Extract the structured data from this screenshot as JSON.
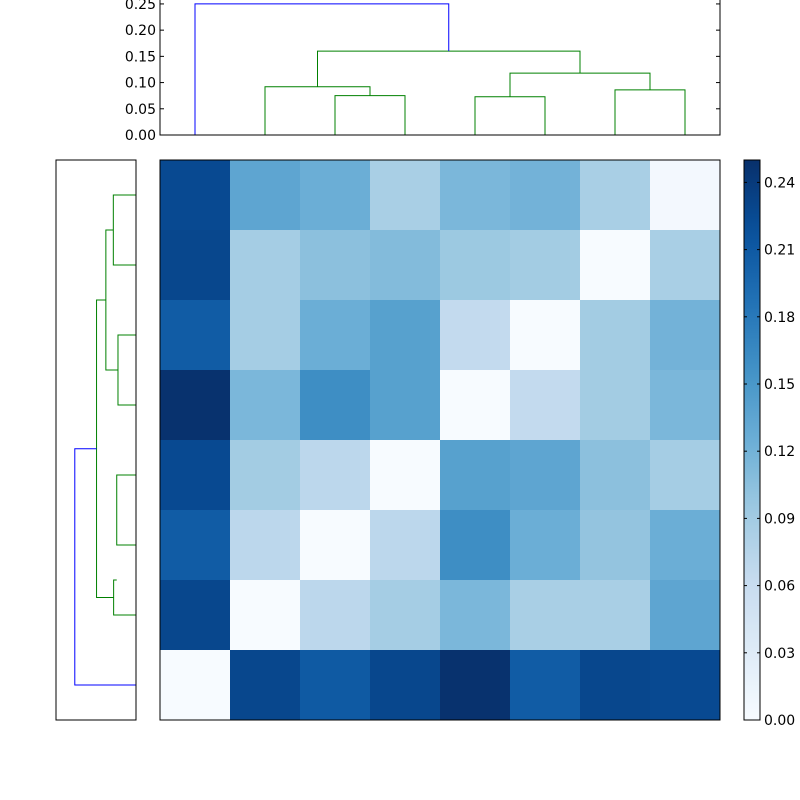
{
  "chart_data": {
    "type": "heatmap",
    "title": "",
    "heatmap": {
      "n": 8,
      "values": [
        [
          0.226,
          0.135,
          0.125,
          0.085,
          0.115,
          0.12,
          0.085,
          0.005
        ],
        [
          0.228,
          0.088,
          0.105,
          0.11,
          0.095,
          0.09,
          0.0,
          0.085
        ],
        [
          0.208,
          0.088,
          0.125,
          0.14,
          0.065,
          0.0,
          0.09,
          0.12
        ],
        [
          0.248,
          0.115,
          0.16,
          0.14,
          0.0,
          0.065,
          0.09,
          0.115
        ],
        [
          0.226,
          0.09,
          0.07,
          0.0,
          0.14,
          0.135,
          0.105,
          0.088
        ],
        [
          0.208,
          0.07,
          0.0,
          0.07,
          0.16,
          0.125,
          0.1,
          0.125
        ],
        [
          0.228,
          0.0,
          0.07,
          0.088,
          0.115,
          0.085,
          0.085,
          0.135
        ],
        [
          0.0,
          0.228,
          0.21,
          0.228,
          0.248,
          0.208,
          0.228,
          0.226
        ]
      ],
      "vmin": 0.0,
      "vmax": 0.25,
      "colormap": "Blues"
    },
    "colorbar": {
      "ticks": [
        "0.00",
        "0.03",
        "0.06",
        "0.09",
        "0.12",
        "0.15",
        "0.18",
        "0.21",
        "0.24"
      ],
      "tick_values": [
        0.0,
        0.03,
        0.06,
        0.09,
        0.12,
        0.15,
        0.18,
        0.21,
        0.24
      ]
    },
    "top_dendrogram": {
      "y_ticks": [
        "0.00",
        "0.05",
        "0.10",
        "0.15",
        "0.20",
        "0.25"
      ],
      "y_tick_values": [
        0.0,
        0.05,
        0.1,
        0.15,
        0.2,
        0.25
      ],
      "ylim": [
        0.0,
        0.2575
      ],
      "links": [
        {
          "a": 3,
          "b": 4,
          "ha": 0,
          "hb": 0,
          "h": 0.075,
          "color": "#008000"
        },
        {
          "a": 2,
          "b": 3.5,
          "ha": 0,
          "hb": 0.075,
          "h": 0.092,
          "color": "#008000"
        },
        {
          "a": 5,
          "b": 6,
          "ha": 0,
          "hb": 0,
          "h": 0.073,
          "color": "#008000"
        },
        {
          "a": 7,
          "b": 8,
          "ha": 0,
          "hb": 0,
          "h": 0.086,
          "color": "#008000"
        },
        {
          "a": 5.5,
          "b": 7.5,
          "ha": 0.073,
          "hb": 0.086,
          "h": 0.118,
          "color": "#008000"
        },
        {
          "a": 2.75,
          "b": 6.5,
          "ha": 0.092,
          "hb": 0.118,
          "h": 0.16,
          "color": "#008000"
        },
        {
          "a": 1,
          "b": 4.625,
          "ha": 0,
          "hb": 0.16,
          "h": 0.25,
          "color": "#0000ff"
        }
      ]
    },
    "left_dendrogram": {
      "xlim": [
        0.2575,
        0.0
      ],
      "links": [
        {
          "a": 1,
          "b": 2,
          "ha": 0,
          "hb": 0,
          "h": 0.073,
          "color": "#008000"
        },
        {
          "a": 3,
          "b": 4,
          "ha": 0,
          "hb": 0,
          "h": 0.058,
          "color": "#008000"
        },
        {
          "a": 1.5,
          "b": 3.5,
          "ha": 0.073,
          "hb": 0.058,
          "h": 0.097,
          "color": "#008000"
        },
        {
          "a": 5,
          "b": 6,
          "ha": 0,
          "hb": 0,
          "h": 0.062,
          "color": "#008000"
        },
        {
          "a": 6.5,
          "b": 7,
          "ha": 0.062,
          "hb": 0,
          "h": 0.072,
          "color": "#008000"
        },
        {
          "a": 2.5,
          "b": 6.75,
          "ha": 0.097,
          "hb": 0.072,
          "h": 0.127,
          "color": "#008000"
        },
        {
          "a": 4.625,
          "b": 8,
          "ha": 0.127,
          "hb": 0,
          "h": 0.197,
          "color": "#0000ff"
        }
      ]
    }
  }
}
